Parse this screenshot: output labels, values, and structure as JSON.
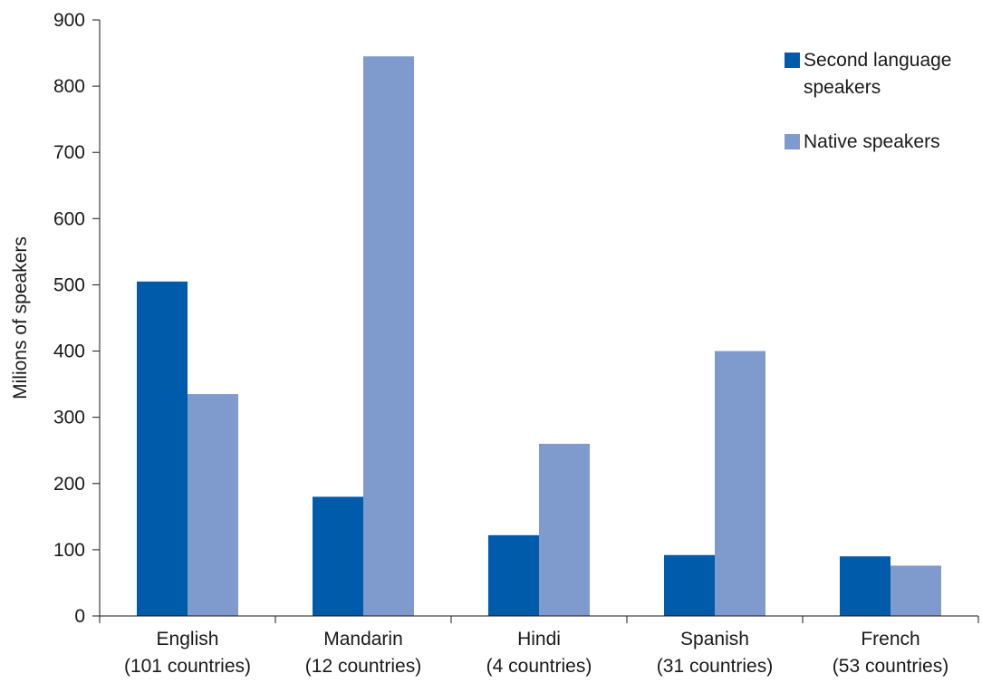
{
  "chart_data": {
    "type": "bar",
    "title": "",
    "xlabel": "",
    "ylabel": "Milions of speakers",
    "ylim": [
      0,
      900
    ],
    "yticks": [
      0,
      100,
      200,
      300,
      400,
      500,
      600,
      700,
      800,
      900
    ],
    "grid": false,
    "legend_position": "top-right",
    "categories": [
      [
        "English",
        "(101 countries)"
      ],
      [
        "Mandarin",
        "(12 countries)"
      ],
      [
        "Hindi",
        "(4 countries)"
      ],
      [
        "Spanish",
        "(31 countries)"
      ],
      [
        "French",
        "(53 countries)"
      ]
    ],
    "series": [
      {
        "name": [
          "Second language",
          "speakers"
        ],
        "color": "#005BAA",
        "values": [
          505,
          180,
          122,
          92,
          90
        ]
      },
      {
        "name": [
          "Native speakers"
        ],
        "color": "#7F9BCD",
        "values": [
          335,
          845,
          260,
          400,
          76
        ]
      }
    ]
  }
}
